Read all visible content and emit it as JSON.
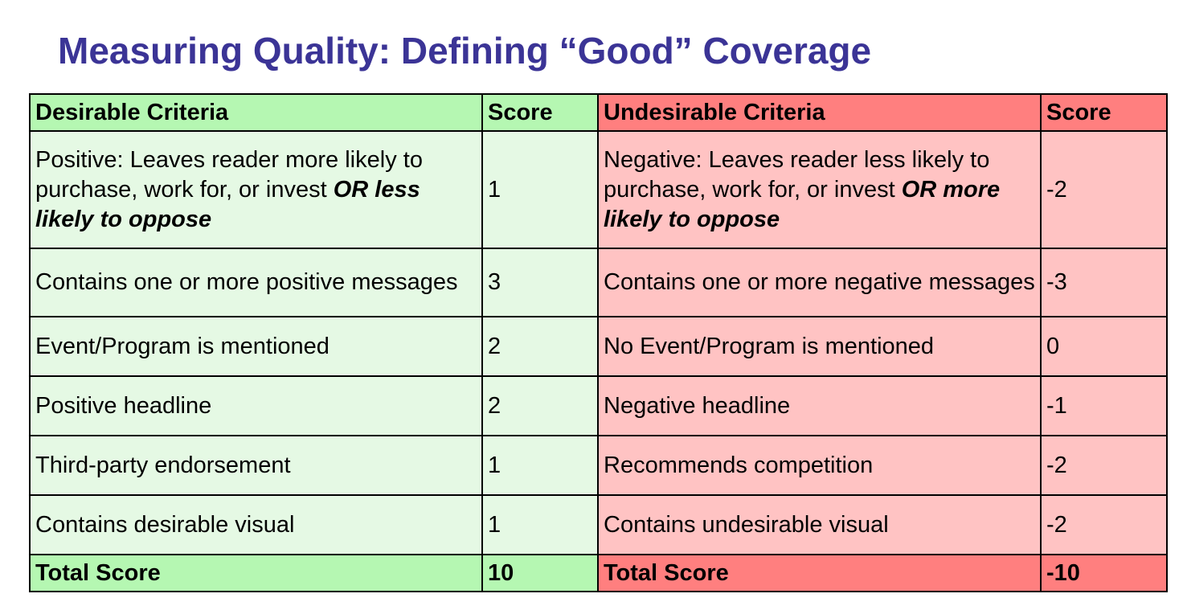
{
  "title": "Measuring Quality: Defining “Good” Coverage",
  "header": {
    "desirable": "Desirable Criteria",
    "desirable_score": "Score",
    "undesirable": "Undesirable Criteria",
    "undesirable_score": "Score"
  },
  "rows": [
    {
      "desirable_plain": "Positive: Leaves reader more likely to purchase, work for, or invest ",
      "desirable_emph": "OR less likely to oppose",
      "desirable_score": "1",
      "undesirable_plain": "Negative: Leaves reader less likely to purchase, work for, or invest ",
      "undesirable_emph": "OR more likely to oppose",
      "undesirable_score": "-2"
    },
    {
      "desirable": "Contains one or more positive messages",
      "desirable_score": "3",
      "undesirable": "Contains one or more negative messages",
      "undesirable_score": "-3"
    },
    {
      "desirable": "Event/Program is mentioned",
      "desirable_score": "2",
      "undesirable": "No Event/Program is mentioned",
      "undesirable_score": "0"
    },
    {
      "desirable": "Positive headline",
      "desirable_score": "2",
      "undesirable": "Negative headline",
      "undesirable_score": "-1"
    },
    {
      "desirable": "Third-party endorsement",
      "desirable_score": "1",
      "undesirable": "Recommends competition",
      "undesirable_score": "-2"
    },
    {
      "desirable": "Contains desirable visual",
      "desirable_score": "1",
      "undesirable": "Contains undesirable visual",
      "undesirable_score": "-2"
    }
  ],
  "totals": {
    "desirable_label": "Total Score",
    "desirable_value": "10",
    "undesirable_label": "Total Score",
    "undesirable_value": "-10"
  },
  "colors": {
    "title": "#3b3496",
    "desirable_header": "#b5f7b2",
    "desirable_cell": "#e5f9e4",
    "undesirable_header": "#ff7f7f",
    "undesirable_cell": "#ffc3c3"
  }
}
